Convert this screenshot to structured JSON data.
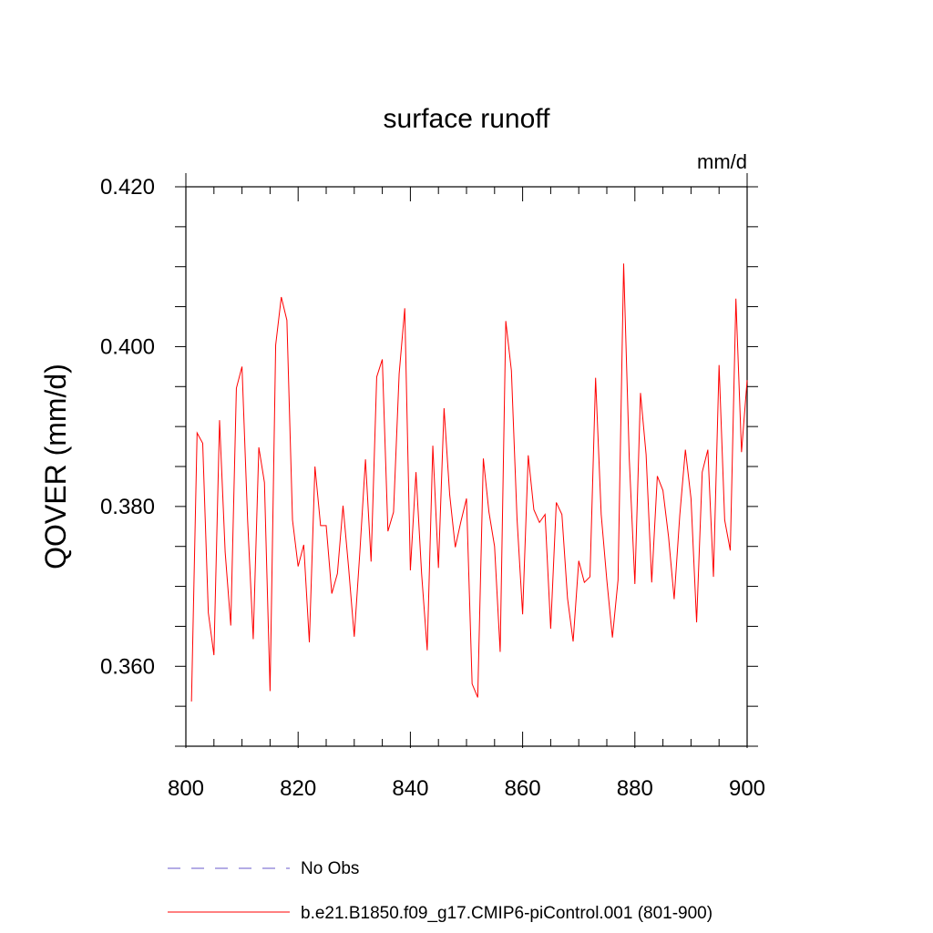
{
  "chart_data": {
    "type": "line",
    "title": "surface runoff",
    "units": "mm/d",
    "xlabel": "",
    "ylabel": "QOVER  (mm/d)",
    "xlim": [
      800,
      900
    ],
    "ylim": [
      0.35,
      0.42
    ],
    "xticks": [
      800,
      820,
      840,
      860,
      880,
      900
    ],
    "yticks": [
      0.36,
      0.38,
      0.4,
      0.42
    ],
    "ytick_labels": [
      "0.360",
      "0.380",
      "0.400",
      "0.420"
    ],
    "series": [
      {
        "name": "No Obs",
        "color": "#6a5acd",
        "style": "dashed",
        "values": []
      },
      {
        "name": "b.e21.B1850.f09_g17.CMIP6-piControl.001 (801-900)",
        "color": "#ff0000",
        "style": "solid",
        "x_start": 801,
        "values": [
          0.3556,
          0.3892,
          0.3879,
          0.3667,
          0.3614,
          0.3908,
          0.3743,
          0.3651,
          0.3948,
          0.3975,
          0.3783,
          0.3634,
          0.3874,
          0.383,
          0.3569,
          0.4002,
          0.4062,
          0.4033,
          0.3783,
          0.3725,
          0.3752,
          0.363,
          0.385,
          0.3776,
          0.3776,
          0.3691,
          0.3716,
          0.3801,
          0.3723,
          0.3637,
          0.3743,
          0.3859,
          0.3731,
          0.3962,
          0.3984,
          0.3769,
          0.3793,
          0.3966,
          0.4048,
          0.372,
          0.3843,
          0.3716,
          0.362,
          0.3876,
          0.3723,
          0.3923,
          0.3815,
          0.3749,
          0.3781,
          0.381,
          0.3578,
          0.3561,
          0.386,
          0.3793,
          0.375,
          0.3618,
          0.4032,
          0.397,
          0.3785,
          0.3665,
          0.3864,
          0.3796,
          0.378,
          0.379,
          0.3647,
          0.3805,
          0.379,
          0.3685,
          0.3631,
          0.3732,
          0.3705,
          0.3712,
          0.3961,
          0.379,
          0.3708,
          0.3636,
          0.3708,
          0.4104,
          0.386,
          0.3703,
          0.3942,
          0.3865,
          0.3705,
          0.3838,
          0.382,
          0.3762,
          0.3684,
          0.3789,
          0.3871,
          0.381,
          0.3655,
          0.3843,
          0.3871,
          0.3712,
          0.3977,
          0.3783,
          0.3745,
          0.406,
          0.3868,
          0.3958
        ]
      }
    ]
  }
}
